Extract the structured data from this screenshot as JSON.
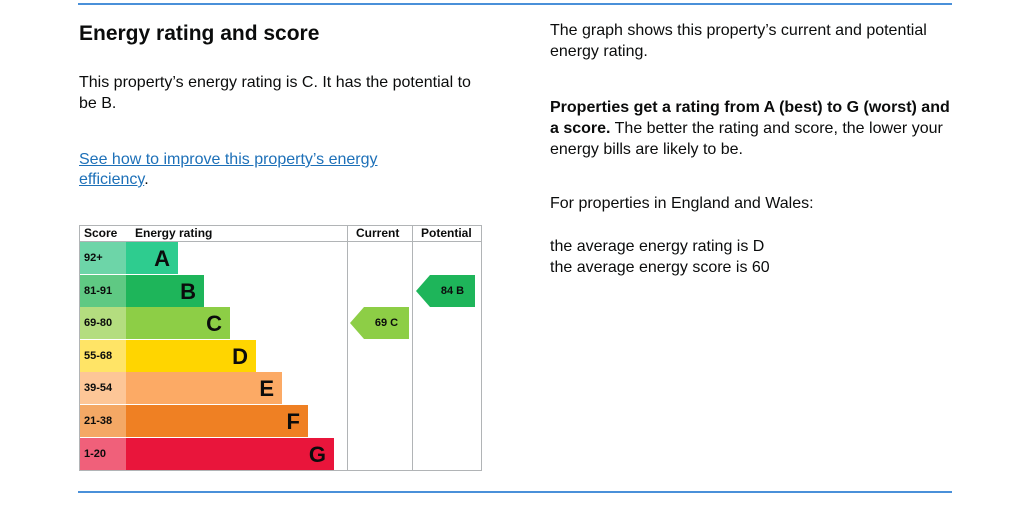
{
  "heading": "Energy rating and score",
  "intro": "This property’s energy rating is C. It has the potential to be B.",
  "improve_link": "See how to improve this property’s energy efficiency",
  "improve_suffix": ".",
  "side": {
    "graph_note": "The graph shows this property’s current and potential energy rating.",
    "rating_bold": "Properties get a rating from A (best) to G (worst) and a score.",
    "rating_rest": " The better the rating and score, the lower your energy bills are likely to be.",
    "region": "For properties in England and Wales:",
    "avg_rating": "the average energy rating is D",
    "avg_score": "the average energy score is 60"
  },
  "chart_data": {
    "type": "table",
    "columns": [
      "Score",
      "Energy rating",
      "Current",
      "Potential"
    ],
    "bands": [
      {
        "score": "92+",
        "letter": "A",
        "color": "#2ecc8f",
        "score_bg": "#6dd5a8"
      },
      {
        "score": "81-91",
        "letter": "B",
        "color": "#1eb55a",
        "score_bg": "#5fc983"
      },
      {
        "score": "69-80",
        "letter": "C",
        "color": "#8dce46",
        "score_bg": "#b4dd7f"
      },
      {
        "score": "55-68",
        "letter": "D",
        "color": "#ffd500",
        "score_bg": "#ffe466"
      },
      {
        "score": "39-54",
        "letter": "E",
        "color": "#fcaa65",
        "score_bg": "#fdc697"
      },
      {
        "score": "21-38",
        "letter": "F",
        "color": "#ef8023",
        "score_bg": "#f4a865"
      },
      {
        "score": "1-20",
        "letter": "G",
        "color": "#e9153b",
        "score_bg": "#f0607a"
      }
    ],
    "current": {
      "label": "69 C",
      "value": 69,
      "band": "C",
      "color": "#8dce46"
    },
    "potential": {
      "label": "84 B",
      "value": 84,
      "band": "B",
      "color": "#1eb55a"
    }
  }
}
